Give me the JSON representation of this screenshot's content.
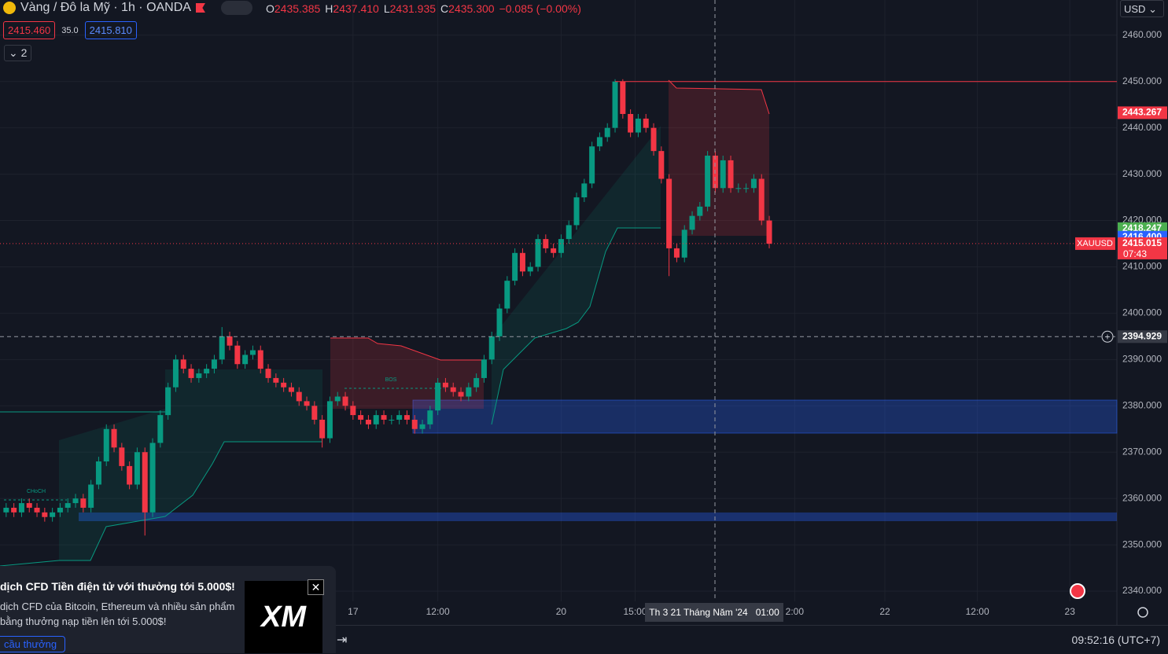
{
  "header": {
    "symbol": "Vàng / Đô la Mỹ · 1h · OANDA",
    "ohlc": [
      "O",
      "2435.385",
      "H",
      "2437.410",
      "L",
      "2431.935",
      "C",
      "2435.300",
      "−0.085 (−0.00%)"
    ],
    "sell_price": "2415.460",
    "spread": "35.0",
    "buy_price": "2415.810",
    "indicators_count": "2",
    "currency": "USD"
  },
  "crosshair": {
    "date": "Th 3 21 Tháng Năm '24",
    "time": "01:00"
  },
  "clock": "09:52:16 (UTC+7)",
  "promo": {
    "title": "dịch CFD Tiền điện tử với thưởng tới 5.000$!",
    "lines": [
      "dịch CFD của Bitcoin, Ethereum và nhiều sản phẩm",
      "bằng thưởng nạp tiền lên tới 5.000$!"
    ],
    "button": "cầu thưởng",
    "logo": "XM"
  },
  "chart_data": {
    "type": "candlestick",
    "up_color": "#089981",
    "down_color": "#f23645",
    "grid": true,
    "open": [
      2357,
      2358,
      2357,
      2359,
      2358,
      2357,
      2356,
      2357,
      2358,
      2359,
      2360,
      2358,
      2363,
      2368,
      2375,
      2371,
      2367,
      2363,
      2370,
      2357,
      2372,
      2378,
      2384,
      2390,
      2388,
      2386,
      2387,
      2388,
      2390,
      2395,
      2393,
      2389,
      2391,
      2392,
      2388,
      2386,
      2385,
      2384,
      2383,
      2381,
      2380,
      2377,
      2373,
      2381,
      2382,
      2380,
      2378,
      2377,
      2376,
      2378,
      2377,
      2377,
      2378,
      2377,
      2375,
      2376,
      2379,
      2385,
      2384,
      2383,
      2382,
      2384,
      2386,
      2390,
      2395,
      2401,
      2407,
      2413,
      2409,
      2410,
      2416,
      2414,
      2413,
      2416,
      2419,
      2425,
      2428,
      2436,
      2438,
      2440,
      2450,
      2443,
      2439,
      2442,
      2440,
      2435,
      2429,
      2414,
      2412,
      2418,
      2421,
      2423,
      2434,
      2427,
      2433,
      2427,
      2427,
      2427,
      2429,
      2420
    ],
    "high": [
      2359,
      2359,
      2360,
      2360,
      2359,
      2358,
      2358,
      2359,
      2360,
      2361,
      2361,
      2364,
      2369,
      2376,
      2376,
      2372,
      2368,
      2371,
      2371,
      2373,
      2379,
      2385,
      2391,
      2391,
      2389,
      2388,
      2389,
      2391,
      2397,
      2396,
      2394,
      2392,
      2393,
      2393,
      2389,
      2387,
      2386,
      2385,
      2384,
      2382,
      2381,
      2378,
      2382,
      2383,
      2383,
      2381,
      2379,
      2378,
      2379,
      2379,
      2378,
      2379,
      2379,
      2378,
      2377,
      2380,
      2386,
      2386,
      2385,
      2384,
      2385,
      2387,
      2391,
      2396,
      2402,
      2408,
      2414,
      2414,
      2411,
      2417,
      2417,
      2415,
      2417,
      2420,
      2426,
      2429,
      2437,
      2439,
      2441,
      2450.5,
      2450.5,
      2444,
      2443,
      2443,
      2441,
      2436,
      2430,
      2415,
      2419,
      2422,
      2424,
      2435,
      2435,
      2434,
      2434,
      2428,
      2428,
      2430,
      2430,
      2421
    ],
    "low": [
      2356,
      2356,
      2356,
      2357,
      2356,
      2355,
      2355,
      2356,
      2357,
      2358,
      2357,
      2357,
      2362,
      2367,
      2370,
      2366,
      2362,
      2362,
      2352,
      2356,
      2371,
      2377,
      2383,
      2387,
      2385,
      2385,
      2386,
      2387,
      2389,
      2392,
      2388,
      2388,
      2390,
      2387,
      2385,
      2384,
      2383,
      2382,
      2380,
      2379,
      2376,
      2371,
      2372,
      2380,
      2379,
      2377,
      2376,
      2375,
      2375,
      2376,
      2376,
      2376,
      2376,
      2374,
      2374,
      2375,
      2378,
      2383,
      2382,
      2381,
      2381,
      2383,
      2385,
      2389,
      2394,
      2400,
      2406,
      2408,
      2408,
      2409,
      2413,
      2412,
      2412,
      2415,
      2418,
      2424,
      2427,
      2435,
      2437,
      2439,
      2442,
      2438,
      2438,
      2439,
      2434,
      2428,
      2408,
      2411,
      2411,
      2417,
      2420,
      2422,
      2426,
      2426,
      2426,
      2426,
      2426,
      2426,
      2419,
      2414
    ],
    "close": [
      2358,
      2357,
      2359,
      2358,
      2357,
      2356,
      2357,
      2358,
      2359,
      2360,
      2358,
      2363,
      2368,
      2375,
      2371,
      2367,
      2363,
      2370,
      2357,
      2372,
      2378,
      2384,
      2390,
      2388,
      2386,
      2387,
      2388,
      2390,
      2395,
      2393,
      2389,
      2391,
      2392,
      2388,
      2386,
      2385,
      2384,
      2383,
      2381,
      2380,
      2377,
      2373,
      2381,
      2382,
      2380,
      2378,
      2377,
      2376,
      2378,
      2377,
      2377,
      2378,
      2377,
      2375,
      2376,
      2379,
      2385,
      2384,
      2383,
      2382,
      2384,
      2386,
      2390,
      2395,
      2401,
      2407,
      2413,
      2409,
      2410,
      2416,
      2414,
      2413,
      2416,
      2419,
      2425,
      2428,
      2436,
      2438,
      2440,
      2450,
      2443,
      2439,
      2442,
      2440,
      2435,
      2429,
      2414,
      2412,
      2418,
      2421,
      2423,
      2434,
      2427,
      2433,
      2427,
      2427,
      2427,
      2429,
      2420,
      2415
    ],
    "ylim": [
      2337.8,
      2467.6
    ],
    "yticks": [
      {
        "value": 2340,
        "label": "2340.000"
      },
      {
        "value": 2350,
        "label": "2350.000"
      },
      {
        "value": 2360,
        "label": "2360.000"
      },
      {
        "value": 2370,
        "label": "2370.000"
      },
      {
        "value": 2380,
        "label": "2380.000"
      },
      {
        "value": 2390,
        "label": "2390.000"
      },
      {
        "value": 2400,
        "label": "2400.000"
      },
      {
        "value": 2410,
        "label": "2410.000"
      },
      {
        "value": 2420,
        "label": "2420.000"
      },
      {
        "value": 2430,
        "label": "2430.000"
      },
      {
        "value": 2440,
        "label": "2440.000"
      },
      {
        "value": 2450,
        "label": "2450.000"
      },
      {
        "value": 2460,
        "label": "2460.000"
      }
    ],
    "xlim": [
      -0.8,
      144.1
    ],
    "xticks": [
      {
        "value": 45,
        "label": "17"
      },
      {
        "value": 56,
        "label": "12:00"
      },
      {
        "value": 72,
        "label": "20"
      },
      {
        "value": 81.6,
        "label": "15:00"
      },
      {
        "value": 102.3,
        "label": "2:00"
      },
      {
        "value": 114,
        "label": "22"
      },
      {
        "value": 126,
        "label": "12:00"
      },
      {
        "value": 138,
        "label": "23"
      }
    ],
    "price_labels": [
      {
        "value": 2443.267,
        "label": "2443.267",
        "color": "#f23645"
      },
      {
        "value": 2418.247,
        "label": "2418.247",
        "color": "#4caf50"
      },
      {
        "value": 2416.4,
        "label": "2416.400",
        "color": "#2962ff"
      },
      {
        "value": 2415.015,
        "label": "2415.015",
        "color": "#f23645"
      },
      {
        "value": 2394.929,
        "label": "2394.929",
        "color": "#363a45"
      }
    ],
    "symbol_label": "XAUUSD",
    "countdown": "07:43",
    "annotations": [
      "CHoCH",
      "BOS"
    ]
  }
}
